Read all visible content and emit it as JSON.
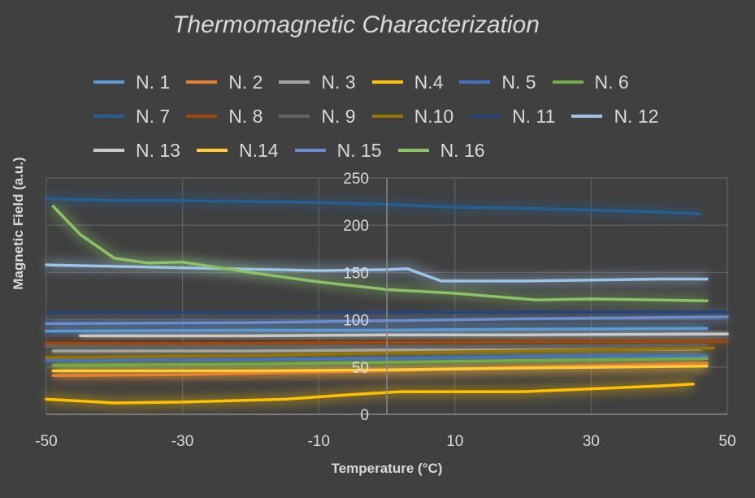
{
  "chart_data": {
    "type": "line",
    "title": "Thermomagnetic Characterization",
    "xlabel": "Temperature (°C)",
    "ylabel": "Magnetic Field (a.u.)",
    "xlim": [
      -50,
      50
    ],
    "ylim": [
      0,
      250
    ],
    "xticks": [
      "-50",
      "-30",
      "-10",
      "10",
      "30",
      "50"
    ],
    "xtick_values": [
      -50,
      -30,
      -10,
      10,
      30,
      50
    ],
    "yticks": [
      "0",
      "50",
      "100",
      "150",
      "200",
      "250"
    ],
    "ytick_values": [
      0,
      50,
      100,
      150,
      200,
      250
    ],
    "grid": true,
    "legend_position": "top",
    "series": [
      {
        "name": "N. 1",
        "color": "#5B9BD5",
        "x": [
          -50,
          -20,
          0,
          20,
          47
        ],
        "y": [
          88,
          89,
          89,
          90,
          91
        ]
      },
      {
        "name": "N. 2",
        "color": "#ED7D31",
        "x": [
          -49,
          -30,
          0,
          20,
          47
        ],
        "y": [
          41,
          42,
          46,
          50,
          54
        ]
      },
      {
        "name": "N. 3",
        "color": "#A5A5A5",
        "x": [
          -49,
          -20,
          0,
          20,
          46
        ],
        "y": [
          67,
          67,
          68,
          68,
          69
        ]
      },
      {
        "name": "N.4",
        "color": "#FFC000",
        "x": [
          -50,
          -40,
          -30,
          -15,
          -5,
          2,
          20,
          30,
          40,
          45
        ],
        "y": [
          16,
          12,
          13,
          16,
          21,
          24,
          24,
          27,
          30,
          32
        ]
      },
      {
        "name": "N. 5",
        "color": "#4472C4",
        "x": [
          -50,
          -20,
          0,
          20,
          47
        ],
        "y": [
          57,
          58,
          59,
          61,
          62
        ]
      },
      {
        "name": "N. 6",
        "color": "#70AD47",
        "x": [
          -49,
          -20,
          0,
          20,
          47
        ],
        "y": [
          52,
          53,
          55,
          57,
          59
        ]
      },
      {
        "name": "N. 7",
        "color": "#255E91",
        "x": [
          -50,
          -40,
          -30,
          -10,
          0,
          10,
          20,
          30,
          40,
          46
        ],
        "y": [
          228,
          226,
          226,
          224,
          222,
          219,
          218,
          216,
          214,
          212
        ]
      },
      {
        "name": "N. 8",
        "color": "#9E480E",
        "x": [
          -50,
          -20,
          0,
          20,
          50
        ],
        "y": [
          75,
          75,
          76,
          77,
          77
        ]
      },
      {
        "name": "N. 9",
        "color": "#636363",
        "x": [
          -50,
          -20,
          0,
          20,
          47
        ],
        "y": [
          72,
          72,
          72,
          72,
          73
        ]
      },
      {
        "name": "N.10",
        "color": "#997300",
        "x": [
          -50,
          -20,
          0,
          20,
          48
        ],
        "y": [
          60,
          62,
          65,
          67,
          70
        ]
      },
      {
        "name": "N. 11",
        "color": "#264478",
        "x": [
          -50,
          -20,
          0,
          20,
          50
        ],
        "y": [
          108,
          108,
          108,
          108,
          108
        ]
      },
      {
        "name": "N. 12",
        "color": "#9DC3E6",
        "x": [
          -50,
          -30,
          -10,
          0,
          3,
          8,
          20,
          30,
          40,
          47
        ],
        "y": [
          158,
          155,
          152,
          153,
          154,
          141,
          141,
          142,
          143,
          143
        ]
      },
      {
        "name": "N. 13",
        "color": "#C9C9C9",
        "x": [
          -45,
          -20,
          0,
          20,
          50
        ],
        "y": [
          83,
          83,
          84,
          84,
          85
        ]
      },
      {
        "name": "N.14",
        "color": "#FFCD33",
        "x": [
          -49,
          -20,
          0,
          20,
          47
        ],
        "y": [
          46,
          46,
          47,
          49,
          51
        ]
      },
      {
        "name": "N. 15",
        "color": "#698ED0",
        "x": [
          -50,
          -20,
          0,
          20,
          50
        ],
        "y": [
          96,
          97,
          99,
          101,
          103
        ]
      },
      {
        "name": "N. 16",
        "color": "#8CC168",
        "x": [
          -49,
          -45,
          -40,
          -35,
          -30,
          -20,
          -10,
          0,
          10,
          22,
          30,
          40,
          47
        ],
        "y": [
          220,
          190,
          165,
          160,
          161,
          150,
          140,
          132,
          128,
          121,
          122,
          121,
          120
        ]
      }
    ]
  }
}
